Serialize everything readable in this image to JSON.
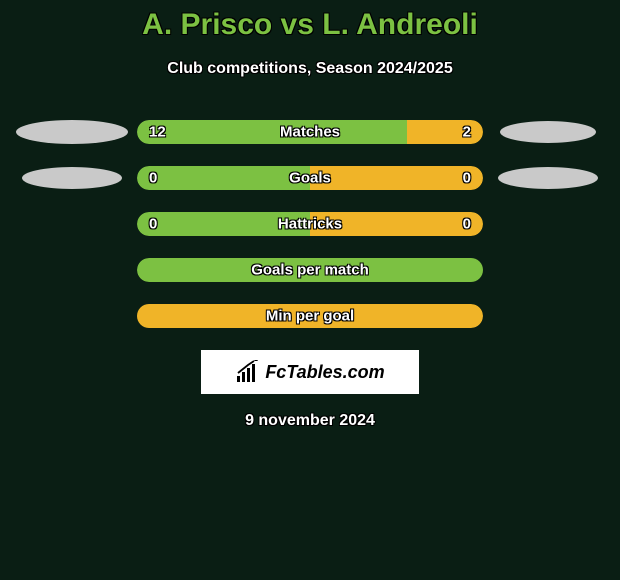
{
  "title": "A. Prisco vs L. Andreoli",
  "subtitle": "Club competitions, Season 2024/2025",
  "colors": {
    "background": "#0a1e14",
    "title_color": "#7cc142",
    "text_color": "#ffffff",
    "bar_left": "#7cc142",
    "bar_right": "#f0b428",
    "ellipse": "#c9c9c9",
    "logo_bg": "#ffffff"
  },
  "rows": [
    {
      "label": "Matches",
      "left_value": "12",
      "right_value": "2",
      "left_pct": 78,
      "right_pct": 22,
      "show_ellipses": true,
      "ellipse_left_class": "ellipse-left-1",
      "ellipse_right_class": "ellipse-right-1"
    },
    {
      "label": "Goals",
      "left_value": "0",
      "right_value": "0",
      "left_pct": 50,
      "right_pct": 50,
      "show_ellipses": true,
      "ellipse_left_class": "ellipse-left-2",
      "ellipse_right_class": "ellipse-right-2"
    },
    {
      "label": "Hattricks",
      "left_value": "0",
      "right_value": "0",
      "left_pct": 50,
      "right_pct": 50,
      "show_ellipses": false
    },
    {
      "label": "Goals per match",
      "left_value": "",
      "right_value": "",
      "left_pct": 100,
      "right_pct": 0,
      "show_ellipses": false
    },
    {
      "label": "Min per goal",
      "left_value": "",
      "right_value": "",
      "left_pct": 0,
      "right_pct": 100,
      "show_ellipses": false
    }
  ],
  "logo_text": "FcTables.com",
  "date": "9 november 2024",
  "fonts": {
    "title_size": 30,
    "subtitle_size": 16,
    "bar_label_size": 15,
    "date_size": 16
  }
}
